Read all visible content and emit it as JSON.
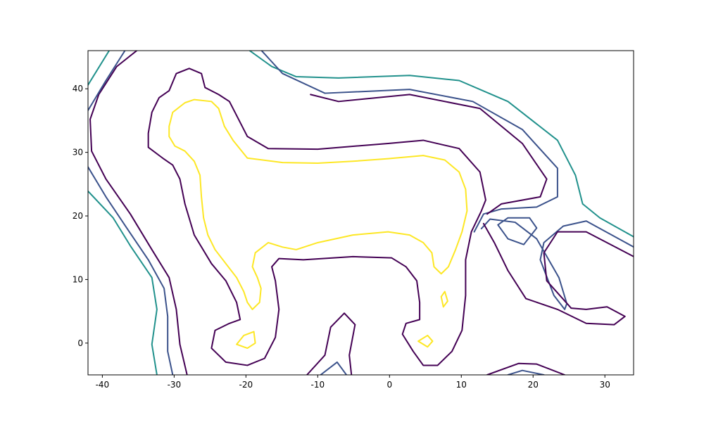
{
  "chart_data": {
    "type": "contour",
    "xlim": [
      -42,
      34
    ],
    "ylim": [
      -5,
      46
    ],
    "xticks": [
      -40,
      -30,
      -20,
      -10,
      0,
      10,
      20,
      30
    ],
    "yticks": [
      0,
      10,
      20,
      30,
      40
    ],
    "series": [
      {
        "color": "#fde725",
        "x": [
          -30.7,
          -30.2,
          -28.5,
          -27.2,
          -24.8,
          -23.8,
          -23.0,
          -21.8,
          -19.8,
          -14.9,
          -10.0,
          -5.1,
          -0.2,
          4.7,
          7.7,
          9.7,
          10.6,
          10.8,
          10.1,
          9.2,
          8.2,
          7.2,
          6.2,
          5.9,
          4.7,
          2.8,
          -0.2,
          -5.1,
          -10.0,
          -13.0,
          -14.9,
          -16.9,
          -18.7,
          -19.1,
          -18.4,
          -17.9,
          -18.1,
          -19.1,
          -19.8,
          -20.3,
          -21.3,
          -22.8,
          -24.3,
          -25.3,
          -25.9,
          -26.2,
          -26.4,
          -27.2,
          -28.5,
          -29.9,
          -30.7,
          -30.7
        ],
        "y": [
          34.1,
          36.3,
          37.8,
          38.3,
          38.0,
          36.9,
          34.1,
          31.9,
          29.1,
          28.4,
          28.3,
          28.6,
          29.0,
          29.5,
          28.8,
          26.9,
          24.2,
          20.8,
          17.5,
          14.7,
          12.0,
          10.9,
          12.0,
          14.2,
          15.8,
          17.0,
          17.5,
          17.0,
          15.8,
          14.7,
          15.1,
          15.8,
          14.2,
          12.0,
          10.3,
          8.6,
          6.4,
          5.3,
          6.4,
          8.1,
          10.3,
          12.5,
          14.7,
          17.0,
          19.7,
          23.0,
          26.4,
          28.6,
          30.2,
          31.0,
          32.5,
          34.1
        ]
      },
      {
        "color": "#440154",
        "x": [
          -33.6,
          -33.1,
          -32.1,
          -30.7,
          -29.7,
          -27.9,
          -26.2,
          -25.7,
          -23.8,
          -22.3,
          -21.3,
          -19.8,
          -16.9,
          -10.0,
          -0.2,
          4.7,
          9.7,
          12.6,
          13.4,
          12.8,
          11.4,
          10.6,
          10.6,
          10.1,
          8.7,
          6.7,
          4.7,
          3.3,
          1.8,
          2.3,
          4.2,
          4.2,
          3.8,
          2.3,
          0.3,
          -5.1,
          -12.0,
          -15.4,
          -16.4,
          -15.9,
          -15.4,
          -15.9,
          -17.4,
          -19.8,
          -22.8,
          -24.8,
          -24.3,
          -22.3,
          -20.8,
          -21.3,
          -22.8,
          -24.8,
          -27.2,
          -28.5,
          -29.2,
          -30.2,
          -31.6,
          -33.6,
          -33.6
        ],
        "y": [
          33.0,
          36.3,
          38.6,
          39.7,
          42.4,
          43.2,
          42.4,
          40.2,
          39.1,
          38.0,
          35.8,
          32.5,
          30.6,
          30.5,
          31.4,
          31.9,
          30.6,
          26.9,
          22.5,
          20.8,
          17.5,
          13.1,
          7.5,
          2.0,
          -1.3,
          -3.5,
          -3.5,
          -1.3,
          1.4,
          3.1,
          3.7,
          6.4,
          9.8,
          12.0,
          13.4,
          13.6,
          13.1,
          13.3,
          12.0,
          9.8,
          5.3,
          0.9,
          -2.4,
          -3.5,
          -3.0,
          -0.8,
          2.0,
          3.1,
          3.7,
          6.4,
          9.8,
          12.5,
          17.0,
          21.9,
          25.8,
          28.0,
          29.1,
          30.8,
          33.0
        ]
      },
      {
        "color": "#440154",
        "x": [
          -35.1,
          -38.0,
          -40.5,
          -41.7,
          -41.5,
          -39.5,
          -36.1,
          -33.1,
          -30.7,
          -29.7,
          -29.2,
          -28.2
        ],
        "y": [
          46.1,
          43.5,
          39.1,
          35.2,
          30.2,
          25.8,
          20.3,
          14.7,
          10.3,
          5.3,
          -0.2,
          -5.0
        ]
      },
      {
        "color": "#3b528b",
        "x": [
          -42.0,
          -39.5,
          -36.6,
          -33.6,
          -31.4,
          -30.9,
          -30.9,
          -30.2
        ],
        "y": [
          27.7,
          23.0,
          18.1,
          13.1,
          8.6,
          4.2,
          -1.3,
          -5.0
        ]
      },
      {
        "color": "#3b528b",
        "x": [
          -42.0,
          -39.5,
          -36.8
        ],
        "y": [
          36.6,
          41.3,
          46.1
        ]
      },
      {
        "color": "#21918c",
        "x": [
          -42.0,
          -39.0
        ],
        "y": [
          40.6,
          46.1
        ]
      },
      {
        "color": "#21918c",
        "x": [
          -42.0,
          -38.5,
          -36.1,
          -33.1,
          -32.4,
          -33.1,
          -32.4
        ],
        "y": [
          23.9,
          19.7,
          15.3,
          10.3,
          5.3,
          -0.2,
          -5.0
        ]
      },
      {
        "color": "#21918c",
        "x": [
          -19.6,
          -16.4,
          -13.0,
          -7.1,
          2.8,
          9.7,
          16.5,
          23.4,
          25.9,
          26.9,
          29.3,
          34.2
        ],
        "y": [
          46.1,
          43.5,
          41.9,
          41.7,
          42.1,
          41.3,
          38.0,
          31.9,
          26.4,
          21.9,
          19.7,
          16.6
        ]
      },
      {
        "color": "#3b528b",
        "x": [
          -17.9,
          -14.9,
          -9.0,
          2.8,
          11.6,
          18.5,
          23.4,
          23.4,
          20.5,
          15.6,
          13.1,
          11.8
        ],
        "y": [
          46.1,
          42.4,
          39.3,
          39.9,
          38.0,
          33.6,
          27.5,
          23.0,
          21.4,
          21.1,
          20.3,
          17.5
        ]
      },
      {
        "color": "#440154",
        "x": [
          -11.0,
          -7.1,
          2.8,
          12.6,
          18.5,
          21.9,
          21.0,
          15.6,
          13.6
        ],
        "y": [
          39.1,
          38.0,
          39.1,
          36.9,
          31.4,
          25.8,
          23.0,
          21.9,
          20.3
        ]
      },
      {
        "color": "#3b528b",
        "x": [
          15.1,
          16.5,
          19.5,
          20.5,
          18.7,
          16.5,
          15.1
        ],
        "y": [
          18.6,
          19.7,
          19.7,
          18.1,
          15.5,
          16.4,
          18.6
        ]
      },
      {
        "color": "#3b528b",
        "x": [
          34.2,
          27.4,
          24.2,
          21.5,
          21.0,
          22.9,
          24.4,
          24.7,
          23.6,
          20.5,
          17.5,
          14.0,
          12.8
        ],
        "y": [
          15.0,
          19.2,
          18.4,
          15.8,
          13.1,
          7.5,
          5.3,
          6.2,
          10.3,
          16.4,
          19.0,
          19.5,
          18.0
        ]
      },
      {
        "color": "#440154",
        "x": [
          13.1,
          14.6,
          16.5,
          19.0,
          23.4,
          27.4,
          31.3,
          32.8,
          30.3,
          27.4,
          25.3,
          21.9,
          21.5,
          23.4,
          27.4,
          34.2
        ],
        "y": [
          18.8,
          15.8,
          11.4,
          7.0,
          5.3,
          3.1,
          2.9,
          4.2,
          5.7,
          5.3,
          5.5,
          9.8,
          14.2,
          17.5,
          17.5,
          13.5
        ]
      },
      {
        "color": "#440154",
        "x": [
          -11.5,
          -9.0,
          -8.2,
          -6.3,
          -4.8,
          -5.6,
          -5.3
        ],
        "y": [
          -5.0,
          -1.9,
          2.5,
          4.7,
          2.9,
          -1.9,
          -5.0
        ]
      },
      {
        "color": "#3b528b",
        "x": [
          -9.6,
          -7.3,
          -6.0
        ],
        "y": [
          -5.0,
          -3.0,
          -5.0
        ]
      },
      {
        "color": "#440154",
        "x": [
          13.6,
          18.0,
          20.5,
          24.4
        ],
        "y": [
          -5.0,
          -3.2,
          -3.3,
          -5.0
        ]
      },
      {
        "color": "#3b528b",
        "x": [
          16.5,
          18.5,
          21.5
        ],
        "y": [
          -5.0,
          -4.3,
          -5.0
        ]
      },
      {
        "color": "#fde725",
        "x": [
          -21.3,
          -20.3,
          -18.9,
          -18.7,
          -19.8,
          -21.3
        ],
        "y": [
          -0.2,
          1.2,
          1.8,
          0.0,
          -0.8,
          -0.2
        ]
      },
      {
        "color": "#fde725",
        "x": [
          4.0,
          5.3,
          6.0,
          5.3,
          4.0
        ],
        "y": [
          0.3,
          1.2,
          0.3,
          -0.6,
          0.3
        ]
      },
      {
        "color": "#fde725",
        "x": [
          7.2,
          7.7,
          8.1,
          7.5,
          7.2
        ],
        "y": [
          7.3,
          8.1,
          6.6,
          5.7,
          7.3
        ]
      }
    ]
  }
}
